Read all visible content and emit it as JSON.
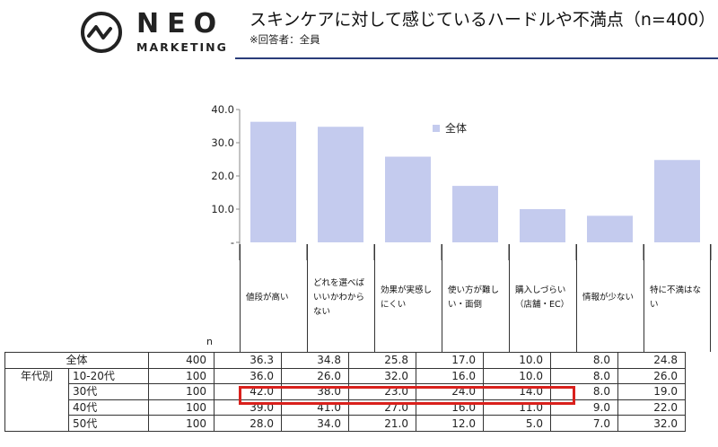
{
  "header": {
    "logo_top": "NEO",
    "logo_bottom": "MARKETING",
    "title": "スキンケアに対して感じているハードルや不満点（n=400）",
    "subtitle": "※回答者：全員"
  },
  "chart_data": {
    "type": "bar",
    "categories": [
      "値段が高い",
      "どれを選べばいいかわからない",
      "効果が実感しにくい",
      "使い方が難しい・面倒",
      "購入しづらい（店舗・EC）",
      "情報が少ない",
      "特に不満はない"
    ],
    "series": [
      {
        "name": "全体",
        "values": [
          36.3,
          34.8,
          25.8,
          17.0,
          10.0,
          8.0,
          24.8
        ]
      }
    ],
    "ylim": [
      0,
      40
    ],
    "yticks": [
      "-",
      "10.0",
      "20.0",
      "30.0",
      "40.0"
    ],
    "legend": "top-center",
    "bar_color": "#c4cbee"
  },
  "table": {
    "n_label": "n",
    "group_label": "年代別",
    "rows": [
      {
        "label": "全体",
        "n": "400",
        "values": [
          "36.3",
          "34.8",
          "25.8",
          "17.0",
          "10.0",
          "8.0",
          "24.8"
        ]
      },
      {
        "label": "10-20代",
        "n": "100",
        "values": [
          "36.0",
          "26.0",
          "32.0",
          "16.0",
          "10.0",
          "8.0",
          "26.0"
        ]
      },
      {
        "label": "30代",
        "n": "100",
        "values": [
          "42.0",
          "38.0",
          "23.0",
          "24.0",
          "14.0",
          "8.0",
          "19.0"
        ]
      },
      {
        "label": "40代",
        "n": "100",
        "values": [
          "39.0",
          "41.0",
          "27.0",
          "16.0",
          "11.0",
          "9.0",
          "22.0"
        ]
      },
      {
        "label": "50代",
        "n": "100",
        "values": [
          "28.0",
          "34.0",
          "21.0",
          "12.0",
          "5.0",
          "7.0",
          "32.0"
        ]
      }
    ],
    "category_headers": [
      [
        "値段が高い"
      ],
      [
        "どれを選べば",
        "いいかわから",
        "ない"
      ],
      [
        "効果が実感し",
        "にくい"
      ],
      [
        "使い方が難し",
        "い・面倒"
      ],
      [
        "購入しづらい",
        "（店舗・EC）"
      ],
      [
        "情報が少ない"
      ],
      [
        "特に不満はな",
        "い"
      ]
    ]
  },
  "colors": {
    "highlight": "#d9201c",
    "rule": "#2a3d7a"
  }
}
